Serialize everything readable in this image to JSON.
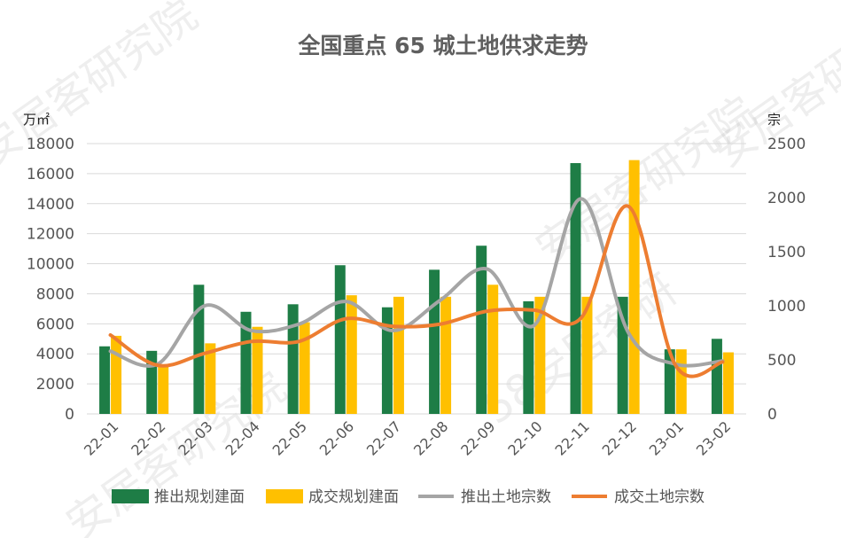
{
  "chart_data": {
    "type": "bar",
    "title": "全国重点 65 城土地供求走势",
    "y_left_label": "万㎡",
    "y_right_label": "宗",
    "y_left_lim": [
      0,
      18000
    ],
    "y_left_ticks": [
      0,
      2000,
      4000,
      6000,
      8000,
      10000,
      12000,
      14000,
      16000,
      18000
    ],
    "y_right_lim": [
      0,
      2500
    ],
    "y_right_ticks": [
      0,
      500,
      1000,
      1500,
      2000,
      2500
    ],
    "categories": [
      "22-01",
      "22-02",
      "22-03",
      "22-04",
      "22-05",
      "22-06",
      "22-07",
      "22-08",
      "22-09",
      "22-10",
      "22-11",
      "22-12",
      "23-01",
      "23-02"
    ],
    "series": [
      {
        "name": "推出规划建面",
        "kind": "bar",
        "axis": "left",
        "color": "#1e7d46",
        "values": [
          4500,
          4200,
          8600,
          6800,
          7300,
          9900,
          7100,
          9600,
          11200,
          7500,
          16700,
          7800,
          4300,
          5000
        ]
      },
      {
        "name": "成交规划建面",
        "kind": "bar",
        "axis": "left",
        "color": "#ffc000",
        "values": [
          5200,
          3300,
          4700,
          5800,
          6100,
          7900,
          7800,
          7800,
          8600,
          7800,
          7800,
          16900,
          4300,
          4100
        ]
      },
      {
        "name": "推出土地宗数",
        "kind": "line",
        "axis": "right",
        "color": "#a5a5a5",
        "values": [
          580,
          460,
          1000,
          770,
          830,
          1040,
          770,
          1050,
          1340,
          820,
          1990,
          750,
          460,
          490
        ]
      },
      {
        "name": "成交土地宗数",
        "kind": "line",
        "axis": "right",
        "color": "#ed7d31",
        "values": [
          730,
          450,
          560,
          670,
          670,
          880,
          810,
          830,
          950,
          960,
          890,
          1920,
          450,
          480
        ]
      }
    ],
    "grid": true,
    "legend_position": "bottom"
  },
  "watermarks": [
    "安居客研究院",
    "安居客研究院",
    "58安居客研",
    "安居客研究院",
    "安居客研"
  ]
}
